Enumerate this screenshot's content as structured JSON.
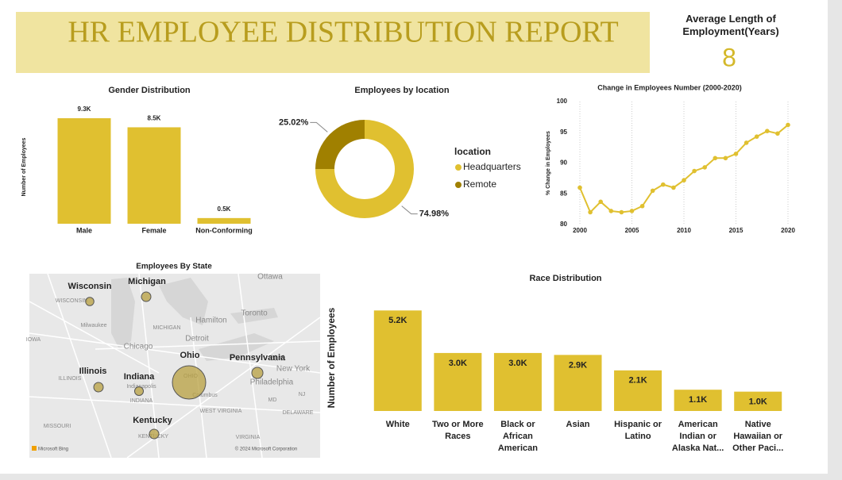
{
  "header": {
    "title": "HR EMPLOYEE DISTRIBUTION REPORT"
  },
  "kpi": {
    "label": "Average Length of Employment(Years)",
    "value": 8
  },
  "chart_data": [
    {
      "type": "bar",
      "title": "Gender Distribution",
      "y_label": "Number of Employees",
      "categories": [
        "Male",
        "Female",
        "Non-Conforming"
      ],
      "values": [
        9300,
        8500,
        500
      ],
      "value_labels": [
        "9.3K",
        "8.5K",
        "0.5K"
      ],
      "color": "#e0c030",
      "ylim": [
        0,
        10000
      ]
    },
    {
      "type": "pie",
      "title": "Employees by location",
      "legend_title": "location",
      "categories": [
        "Headquarters",
        "Remote"
      ],
      "values": [
        74.98,
        25.02
      ],
      "value_labels": [
        "74.98%",
        "25.02%"
      ],
      "colors": [
        "#e0c030",
        "#a08000"
      ],
      "donut": true
    },
    {
      "type": "line",
      "title": "Change in Employees Number (2000-2020)",
      "y_label": "% Change in Employees",
      "x": [
        2000,
        2001,
        2002,
        2003,
        2004,
        2005,
        2006,
        2007,
        2008,
        2009,
        2010,
        2011,
        2012,
        2013,
        2014,
        2015,
        2016,
        2017,
        2018,
        2019,
        2020
      ],
      "values": [
        86,
        82,
        83.7,
        82.2,
        82,
        82.2,
        83,
        85.5,
        86.5,
        86,
        87.2,
        88.7,
        89.3,
        90.8,
        90.8,
        91.5,
        93.3,
        94.3,
        95.2,
        94.8,
        96.2
      ],
      "color": "#e0c030",
      "xlim": [
        2000,
        2020
      ],
      "xticks": [
        2000,
        2005,
        2010,
        2015,
        2020
      ],
      "ylim": [
        80,
        100
      ],
      "yticks": [
        80,
        85,
        90,
        95,
        100
      ],
      "grid": true
    },
    {
      "type": "map",
      "title": "Employees By State",
      "categories": [
        "Wisconsin",
        "Michigan",
        "Illinois",
        "Indiana",
        "Ohio",
        "Pennsylvania",
        "Kentucky"
      ],
      "values": [
        500,
        650,
        650,
        550,
        8000,
        900,
        650
      ],
      "color": "#b8a040",
      "map_labels": [
        "Ottawa",
        "Toronto",
        "Hamilton",
        "Detroit",
        "Milwaukee",
        "MICHIGAN",
        "Chicago",
        "IOWA",
        "WISCONSIN",
        "ILLINOIS",
        "Indianapolis",
        "INDIANA",
        "OHIO",
        "Columbus",
        "N.Y.",
        "New York",
        "Philadelphia",
        "NJ",
        "MD",
        "DELAWARE",
        "WEST VIRGINIA",
        "VIRGINIA",
        "KENTUCKY",
        "MISSOURI"
      ],
      "attribution": "© 2024 Microsoft Corporation",
      "provider": "Microsoft Bing"
    },
    {
      "type": "bar",
      "title": "Race Distribution",
      "y_label": "Number of Employees",
      "categories": [
        "White",
        "Two or More Races",
        "Black or African American",
        "Asian",
        "Hispanic or Latino",
        "American Indian or Alaska Nat...",
        "Native Hawaiian or Other Paci..."
      ],
      "values": [
        5200,
        3000,
        3000,
        2900,
        2100,
        1100,
        1000
      ],
      "value_labels": [
        "5.2K",
        "3.0K",
        "3.0K",
        "2.9K",
        "2.1K",
        "1.1K",
        "1.0K"
      ],
      "color": "#e0c030",
      "ylim": [
        0,
        5500
      ]
    }
  ]
}
